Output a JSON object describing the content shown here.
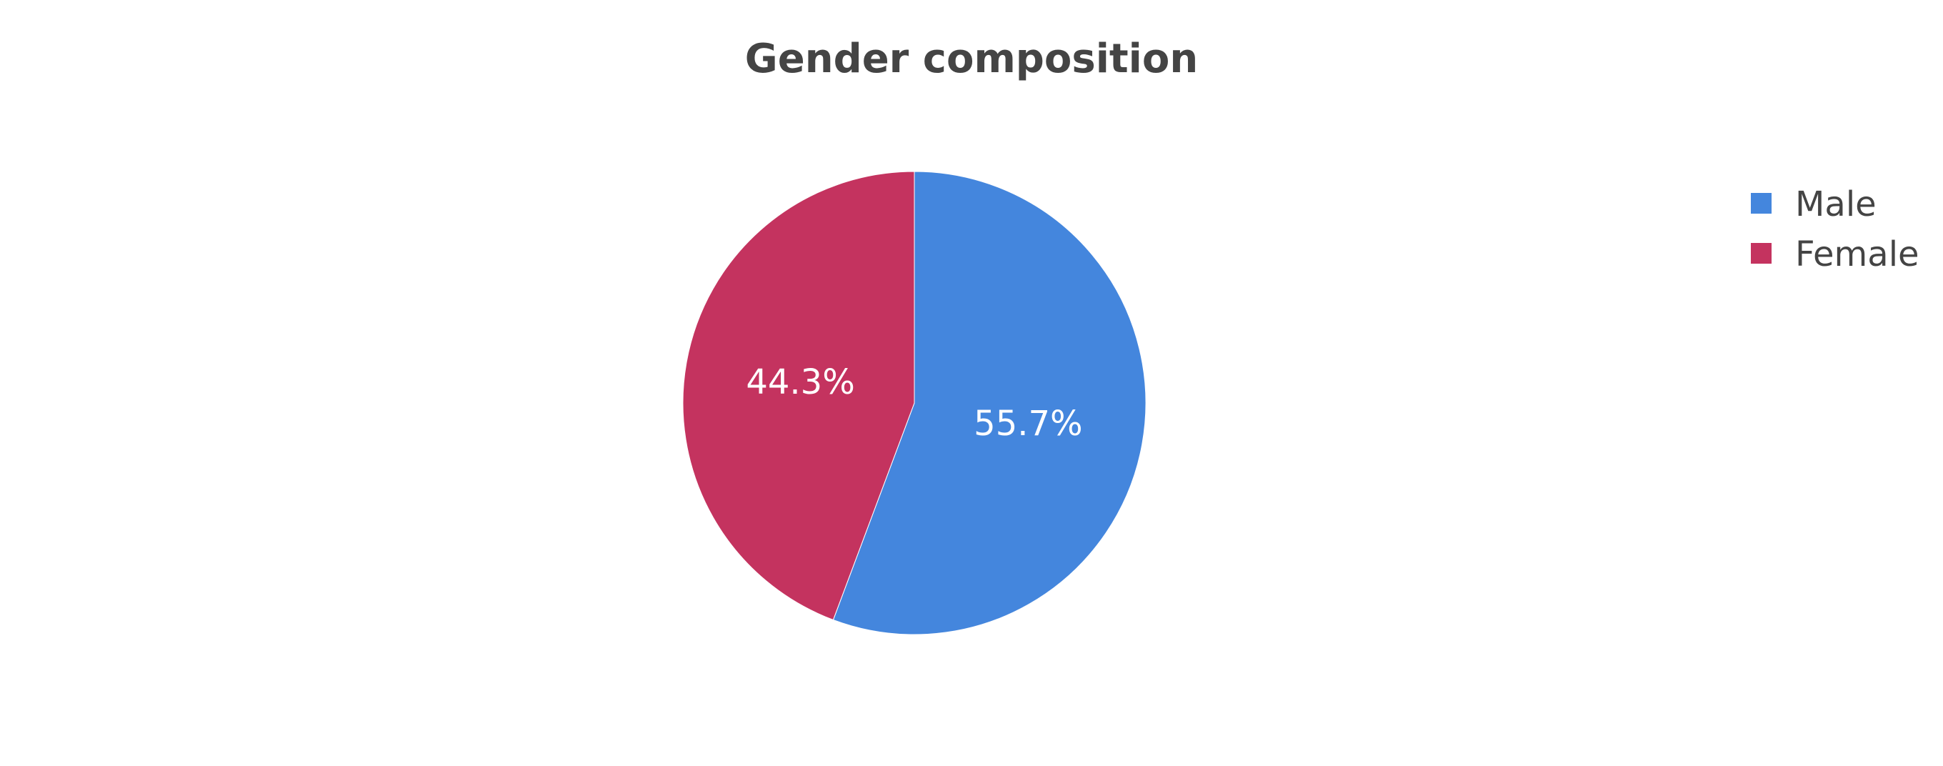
{
  "chart_data": {
    "type": "pie",
    "title": "Gender composition",
    "legend_position": "top-right",
    "slices": [
      {
        "name": "Male",
        "value": 55.7,
        "label": "55.7%",
        "color": "#4486dd"
      },
      {
        "name": "Female",
        "value": 44.3,
        "label": "44.3%",
        "color": "#c4335f"
      }
    ]
  }
}
